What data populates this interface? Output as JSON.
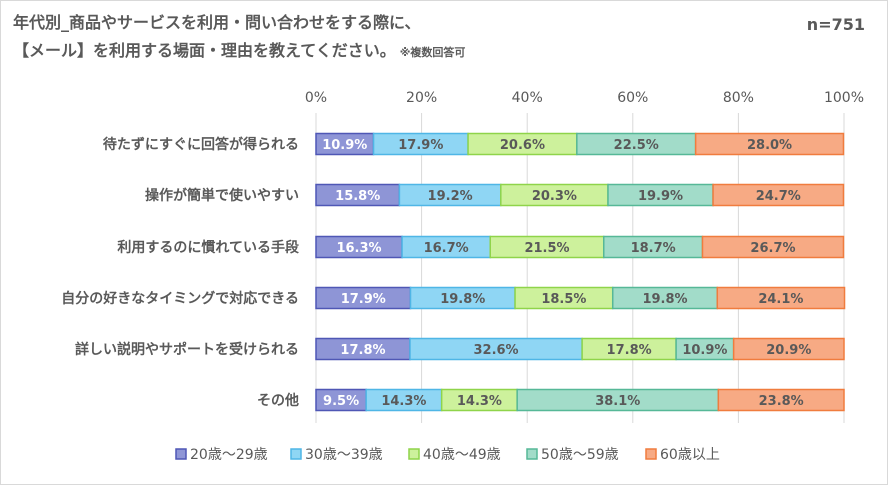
{
  "title_line1": "年代別_商品やサービスを利用・問い合わせをする際に、",
  "title_line2": "【メール】を利用する場面・理由を教えてください。",
  "title_note": "※複数回答可",
  "n_label": "n=751",
  "colors": {
    "fills": [
      "#8e95d6",
      "#8fd6f4",
      "#cdf19c",
      "#a2dcc9",
      "#f7aa84"
    ],
    "strokes": [
      "#4f57b5",
      "#4fb6e6",
      "#8fd44a",
      "#56b897",
      "#f07c3e"
    ],
    "text": "#595959"
  },
  "chart_data": {
    "type": "bar",
    "orientation": "horizontal",
    "stacked": true,
    "xlim": [
      0,
      100
    ],
    "ticks": [
      "0%",
      "20%",
      "40%",
      "60%",
      "80%",
      "100%"
    ],
    "tick_values": [
      0,
      20,
      40,
      60,
      80,
      100
    ],
    "legend_position": "bottom",
    "categories": [
      "待たずにすぐに回答が得られる",
      "操作が簡単で使いやすい",
      "利用するのに慣れている手段",
      "自分の好きなタイミングで対応できる",
      "詳しい説明やサポートを受けられる",
      "その他"
    ],
    "series": [
      {
        "name": "20歳～29歳",
        "values": [
          10.9,
          15.8,
          16.3,
          17.9,
          17.8,
          9.5
        ],
        "labels": [
          "10.9%",
          "15.8%",
          "16.3%",
          "17.9%",
          "17.8%",
          "9.5%"
        ]
      },
      {
        "name": "30歳～39歳",
        "values": [
          17.9,
          19.2,
          16.7,
          19.8,
          32.6,
          14.3
        ],
        "labels": [
          "17.9%",
          "19.2%",
          "16.7%",
          "19.8%",
          "32.6%",
          "14.3%"
        ]
      },
      {
        "name": "40歳～49歳",
        "values": [
          20.6,
          20.3,
          21.5,
          18.5,
          17.8,
          14.3
        ],
        "labels": [
          "20.6%",
          "20.3%",
          "21.5%",
          "18.5%",
          "17.8%",
          "14.3%"
        ]
      },
      {
        "name": "50歳～59歳",
        "values": [
          22.5,
          19.9,
          18.7,
          19.8,
          10.9,
          38.1
        ],
        "labels": [
          "22.5%",
          "19.9%",
          "18.7%",
          "19.8%",
          "10.9%",
          "38.1%"
        ]
      },
      {
        "name": "60歳以上",
        "values": [
          28.0,
          24.7,
          26.7,
          24.1,
          20.9,
          23.8
        ],
        "labels": [
          "28.0%",
          "24.7%",
          "26.7%",
          "24.1%",
          "20.9%",
          "23.8%"
        ]
      }
    ]
  }
}
